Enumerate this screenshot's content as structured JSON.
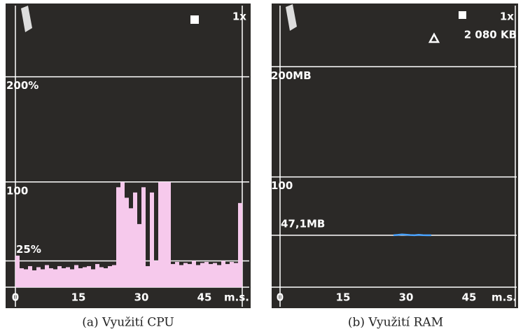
{
  "chart_data": [
    {
      "type": "bar",
      "caption": "(a) Využití CPU",
      "speed": "1x",
      "x_label": "m.s.",
      "xlim": [
        0,
        54
      ],
      "xticks": [
        0,
        15,
        30,
        45
      ],
      "ylim": [
        0,
        263
      ],
      "yticks": [
        {
          "value": 100,
          "label": "100"
        },
        {
          "value": 200,
          "label": "200%"
        }
      ],
      "threshold": {
        "value": 25,
        "label": "25%"
      },
      "color": "#f6c9ec",
      "x": [
        0,
        1,
        2,
        3,
        4,
        5,
        6,
        7,
        8,
        9,
        10,
        11,
        12,
        13,
        14,
        15,
        16,
        17,
        18,
        19,
        20,
        21,
        22,
        23,
        24,
        25,
        26,
        27,
        28,
        29,
        30,
        31,
        32,
        33,
        34,
        35,
        36,
        37,
        38,
        39,
        40,
        41,
        42,
        43,
        44,
        45,
        46,
        47,
        48,
        49,
        50,
        51,
        52,
        53
      ],
      "values": [
        30,
        18,
        17,
        20,
        16,
        19,
        17,
        21,
        18,
        17,
        20,
        18,
        19,
        17,
        21,
        18,
        19,
        20,
        17,
        22,
        19,
        18,
        20,
        21,
        95,
        100,
        85,
        75,
        90,
        60,
        95,
        20,
        90,
        25,
        100,
        100,
        100,
        22,
        24,
        21,
        23,
        22,
        25,
        21,
        23,
        24,
        22,
        23,
        21,
        25,
        22,
        24,
        23,
        80
      ]
    },
    {
      "type": "line",
      "caption": "(b) Využití RAM",
      "speed": "1x",
      "memory_label": "2 080 KB",
      "x_label": "m.s.",
      "xlim": [
        0,
        56
      ],
      "xticks": [
        0,
        15,
        30,
        45
      ],
      "ylim": [
        0,
        251
      ],
      "yticks": [
        {
          "value": 100,
          "label": "100"
        },
        {
          "value": 200,
          "label": "200MB"
        }
      ],
      "threshold": {
        "value": 47.1,
        "label": "47,1MB"
      },
      "color": "#4aa3ff",
      "x": [
        27,
        28,
        29,
        30,
        31,
        32,
        33,
        34,
        35,
        36
      ],
      "values": [
        47.1,
        47.4,
        47.8,
        47.6,
        47.3,
        47.1,
        47.5,
        47.2,
        47.1,
        47.1
      ]
    }
  ]
}
